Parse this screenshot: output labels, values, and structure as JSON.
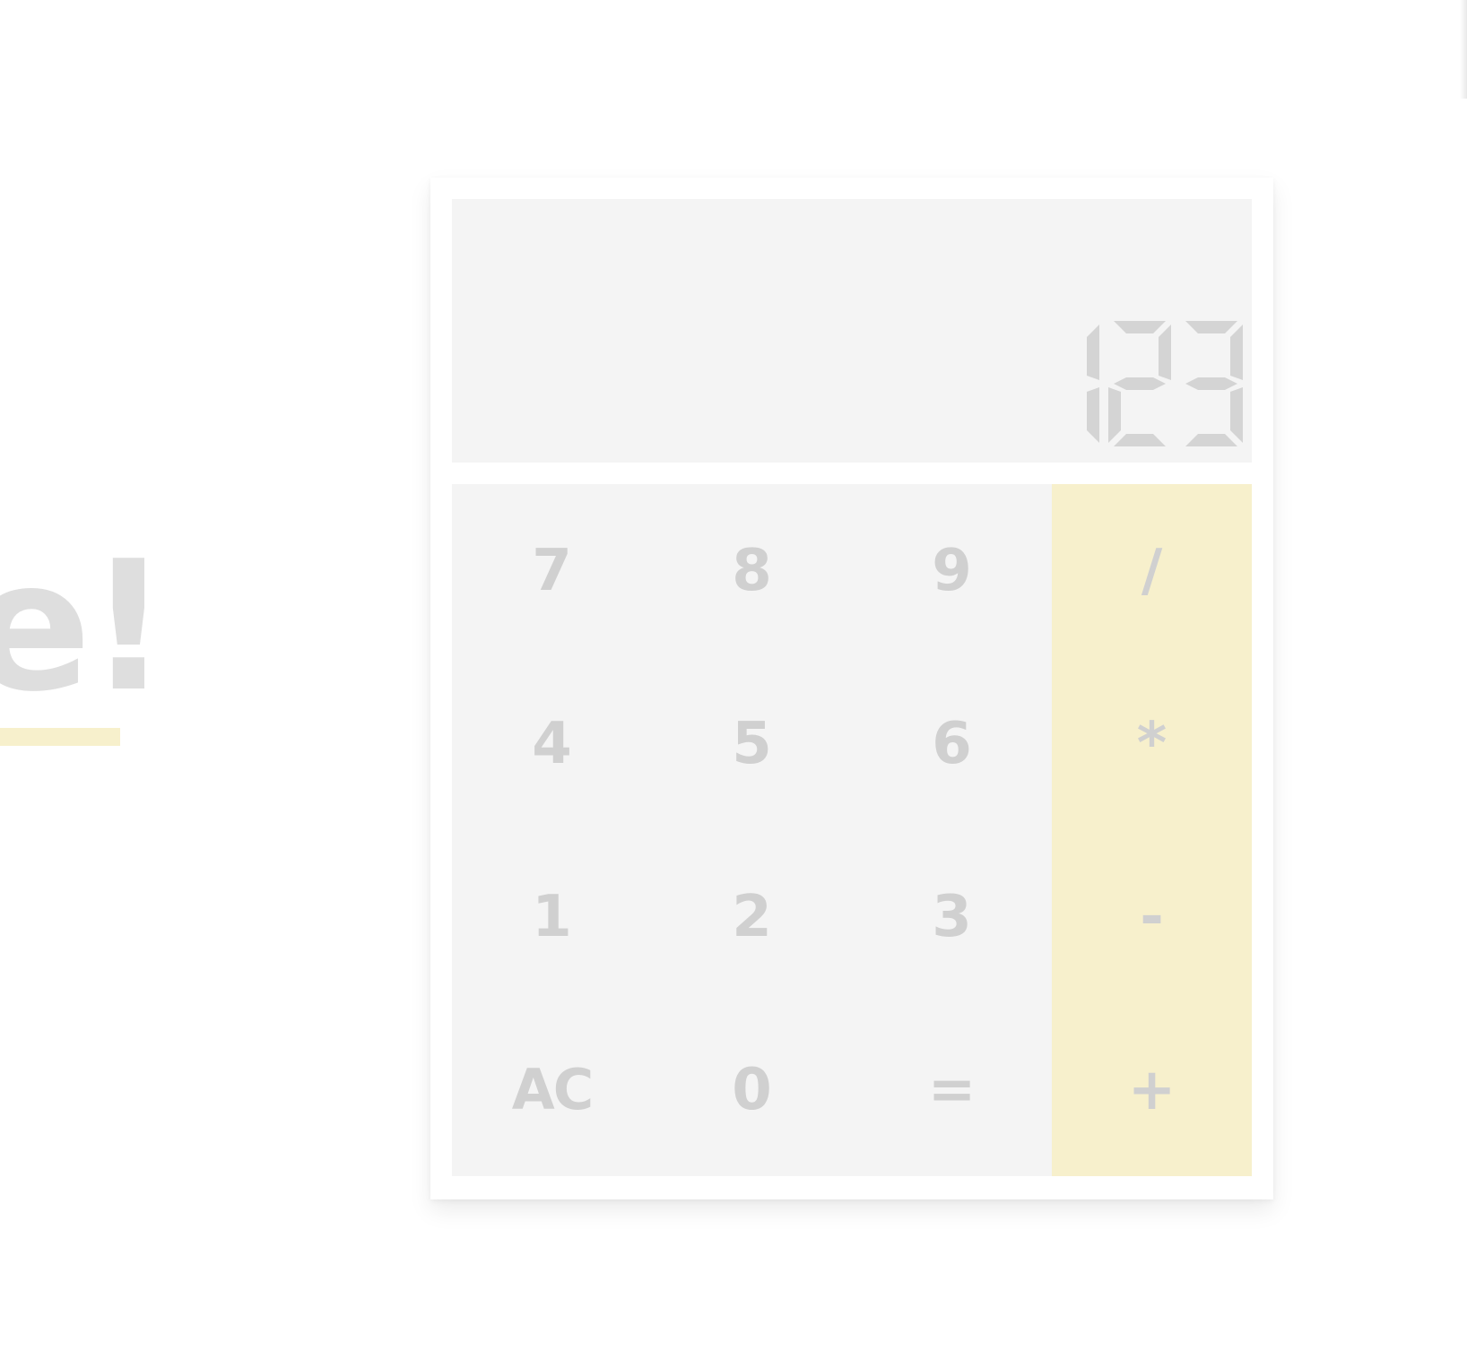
{
  "heading": {
    "text": "e!"
  },
  "calculator": {
    "display": "123",
    "keys": {
      "seven": "7",
      "eight": "8",
      "nine": "9",
      "divide": "/",
      "four": "4",
      "five": "5",
      "six": "6",
      "multiply": "*",
      "one": "1",
      "two": "2",
      "three": "3",
      "subtract": "-",
      "clear": "AC",
      "zero": "0",
      "equals": "=",
      "add": "+"
    }
  },
  "colors": {
    "accent": "#f7f0cc",
    "panel": "#f4f4f4",
    "text": "#d0d0d0"
  }
}
